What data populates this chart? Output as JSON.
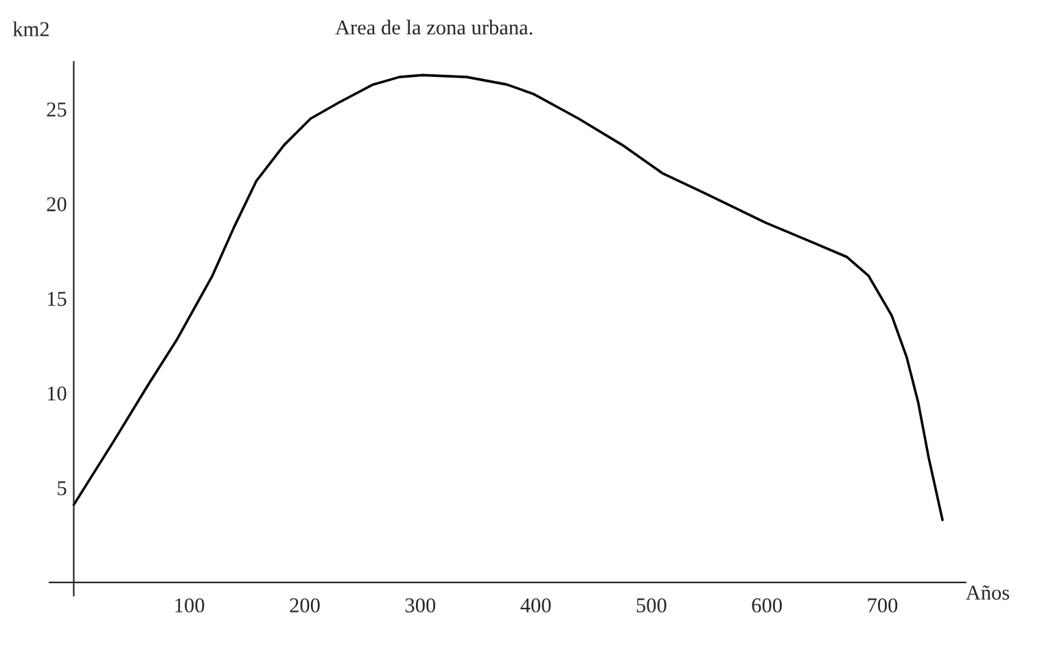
{
  "chart_data": {
    "type": "line",
    "title": "Area de la zona urbana.",
    "xlabel": "Años",
    "ylabel": "km2",
    "x": [
      0,
      35,
      64,
      89,
      120,
      139,
      158,
      182,
      205,
      228,
      259,
      282,
      302,
      340,
      375,
      398,
      437,
      475,
      510,
      545,
      599,
      638,
      669,
      688,
      708,
      721,
      731,
      740,
      752
    ],
    "series": [
      {
        "color": "#000000",
        "values": [
          4.1,
          7.5,
          10.4,
          12.8,
          16.2,
          18.8,
          21.2,
          23.1,
          24.5,
          25.3,
          26.3,
          26.7,
          26.8,
          26.7,
          26.3,
          25.8,
          24.5,
          23.1,
          21.6,
          20.6,
          19.0,
          18.0,
          17.2,
          16.2,
          14.1,
          11.9,
          9.5,
          6.6,
          3.3
        ]
      }
    ],
    "xlim": [
      -21,
      772
    ],
    "ylim": [
      -0.7,
      27.5
    ],
    "xticks": [
      100,
      200,
      300,
      400,
      500,
      600,
      700
    ],
    "yticks": [
      5,
      10,
      15,
      20,
      25
    ],
    "grid": false,
    "marker": "none",
    "line_style": "solid"
  }
}
